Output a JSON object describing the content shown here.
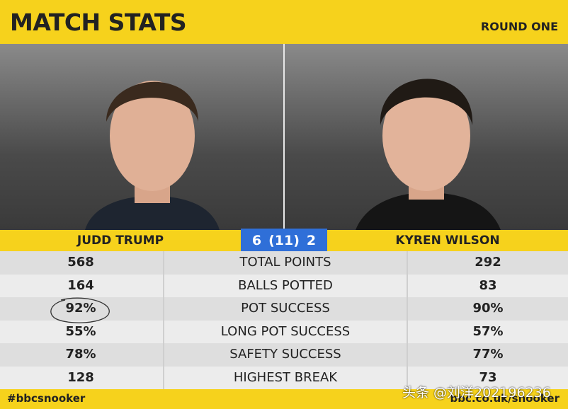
{
  "header": {
    "title": "MATCH STATS",
    "round": "ROUND ONE"
  },
  "players": {
    "left": "JUDD TRUMP",
    "right": "KYREN WILSON"
  },
  "score": {
    "left": "6",
    "frames": "(11)",
    "right": "2"
  },
  "table": {
    "rows": [
      [
        "568",
        "TOTAL POINTS",
        "292"
      ],
      [
        "164",
        "BALLS POTTED",
        "83"
      ],
      [
        "92%",
        "POT SUCCESS",
        "90%"
      ],
      [
        "55%",
        "LONG POT SUCCESS",
        "57%"
      ],
      [
        "78%",
        "SAFETY SUCCESS",
        "77%"
      ],
      [
        "128",
        "HIGHEST BREAK",
        "73"
      ]
    ]
  },
  "footer": {
    "left": "#bbcsnooker",
    "right": "bbc.co.uk/snooker"
  },
  "watermark": "头条 @刘洋202196236"
}
